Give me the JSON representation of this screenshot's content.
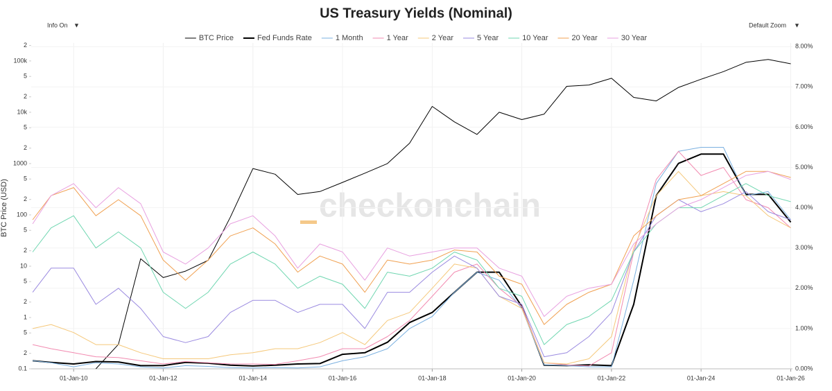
{
  "chart_data": {
    "type": "line",
    "title": "US Treasury Yields (Nominal)",
    "info_toggle": "Info On",
    "zoom_control": "Default Zoom",
    "watermark": "checkonchain",
    "ylabel": "BTC Price (USD)",
    "ylog": true,
    "grid": true,
    "xlim": [
      "2009-01-20",
      "2026-01-15"
    ],
    "xticks": [
      {
        "value": "2010-01-01",
        "label": "01-Jan-10"
      },
      {
        "value": "2012-01-01",
        "label": "01-Jan-12"
      },
      {
        "value": "2014-01-01",
        "label": "01-Jan-14"
      },
      {
        "value": "2016-01-01",
        "label": "01-Jan-16"
      },
      {
        "value": "2018-01-01",
        "label": "01-Jan-18"
      },
      {
        "value": "2020-01-01",
        "label": "01-Jan-20"
      },
      {
        "value": "2022-01-01",
        "label": "01-Jan-22"
      },
      {
        "value": "2024-01-01",
        "label": "01-Jan-24"
      },
      {
        "value": "2026-01-01",
        "label": "01-Jan-26"
      }
    ],
    "ylim": [
      0.1,
      224000
    ],
    "yticks": [
      0.1,
      {
        "value": 0.2,
        "label": "2"
      },
      {
        "value": 0.5,
        "label": "5"
      },
      1,
      2,
      5,
      10,
      {
        "value": 20,
        "label": "2"
      },
      {
        "value": 50,
        "label": "5"
      },
      100,
      {
        "value": 200,
        "label": "2"
      },
      {
        "value": 500,
        "label": "5"
      },
      1000,
      {
        "value": 2000,
        "label": "2"
      },
      {
        "value": 5000,
        "label": "5"
      },
      {
        "value": 10000,
        "label": "10k"
      },
      {
        "value": 20000,
        "label": "2"
      },
      {
        "value": 50000,
        "label": "5"
      },
      {
        "value": 100000,
        "label": "100k"
      },
      {
        "value": 200000,
        "label": "2"
      }
    ],
    "y2lim": [
      0,
      8.09
    ],
    "y2ticks": [
      {
        "value": 0,
        "label": "0.00%"
      },
      {
        "value": 1,
        "label": "1.00%"
      },
      {
        "value": 2,
        "label": "2.00%"
      },
      {
        "value": 3,
        "label": "3.00%"
      },
      {
        "value": 4,
        "label": "4.00%"
      },
      {
        "value": 5,
        "label": "5.00%"
      },
      {
        "value": 6,
        "label": "6.00%"
      },
      {
        "value": 7,
        "label": "7.00%"
      },
      {
        "value": 8,
        "label": "8.00%"
      }
    ],
    "x": [
      "2009-02-01",
      "2009-07-01",
      "2010-01-01",
      "2010-07-01",
      "2011-01-01",
      "2011-07-01",
      "2012-01-01",
      "2012-07-01",
      "2013-01-01",
      "2013-07-01",
      "2014-01-01",
      "2014-07-01",
      "2015-01-01",
      "2015-07-01",
      "2016-01-01",
      "2016-07-01",
      "2017-01-01",
      "2017-07-01",
      "2018-01-01",
      "2018-07-01",
      "2019-01-01",
      "2019-07-01",
      "2020-01-01",
      "2020-07-01",
      "2021-01-01",
      "2021-07-01",
      "2022-01-01",
      "2022-07-01",
      "2023-01-01",
      "2023-07-01",
      "2024-01-01",
      "2024-07-01",
      "2025-01-01",
      "2025-07-01",
      "2026-01-01"
    ],
    "series": [
      {
        "name": "BTC Price",
        "color": "#000000",
        "line_width": 1,
        "axis": "y",
        "values": [
          null,
          null,
          null,
          0.1,
          0.3,
          14,
          6,
          8,
          13,
          90,
          800,
          620,
          250,
          285,
          430,
          650,
          1000,
          2500,
          13000,
          6500,
          3700,
          10000,
          7200,
          9200,
          32000,
          34000,
          46000,
          19500,
          16600,
          30500,
          44000,
          62000,
          94000,
          107000,
          88000
        ]
      },
      {
        "name": "Fed Funds Rate",
        "color": "#000000",
        "line_width": 2,
        "axis": "y2",
        "values": [
          0.2,
          0.16,
          0.12,
          0.18,
          0.17,
          0.08,
          0.08,
          0.16,
          0.14,
          0.09,
          0.07,
          0.09,
          0.12,
          0.13,
          0.36,
          0.4,
          0.66,
          1.15,
          1.4,
          1.9,
          2.4,
          2.4,
          1.55,
          0.09,
          0.08,
          0.1,
          0.08,
          1.6,
          4.3,
          5.1,
          5.33,
          5.33,
          4.33,
          4.33,
          3.64
        ]
      },
      {
        "name": "1 Month",
        "color": "#7ab0e0",
        "line_width": 1,
        "axis": "y2",
        "values": [
          0.2,
          0.15,
          0.05,
          0.15,
          0.12,
          0.05,
          0.02,
          0.08,
          0.06,
          0.03,
          0.02,
          0.03,
          0.02,
          0.05,
          0.2,
          0.3,
          0.5,
          1.0,
          1.3,
          1.9,
          2.4,
          2.2,
          1.5,
          0.1,
          0.08,
          0.05,
          0.05,
          2.2,
          4.6,
          5.4,
          5.5,
          5.5,
          4.3,
          4.4,
          3.7
        ]
      },
      {
        "name": "1 Year",
        "color": "#f28ab0",
        "line_width": 1,
        "axis": "y2",
        "values": [
          0.6,
          0.5,
          0.4,
          0.3,
          0.28,
          0.2,
          0.12,
          0.18,
          0.15,
          0.12,
          0.12,
          0.11,
          0.2,
          0.3,
          0.5,
          0.5,
          0.8,
          1.2,
          1.8,
          2.4,
          2.6,
          2.0,
          1.55,
          0.15,
          0.1,
          0.07,
          0.4,
          2.9,
          4.7,
          5.4,
          4.8,
          5.0,
          4.2,
          4.0,
          3.5
        ]
      },
      {
        "name": "2 Year",
        "color": "#f5c87a",
        "line_width": 1,
        "axis": "y2",
        "values": [
          1.0,
          1.1,
          0.9,
          0.6,
          0.6,
          0.4,
          0.25,
          0.25,
          0.25,
          0.35,
          0.4,
          0.5,
          0.5,
          0.65,
          0.9,
          0.6,
          1.2,
          1.4,
          2.0,
          2.6,
          2.5,
          1.8,
          1.5,
          0.15,
          0.12,
          0.25,
          0.8,
          3.0,
          4.3,
          4.9,
          4.3,
          4.4,
          4.3,
          3.8,
          3.5
        ]
      },
      {
        "name": "5 Year",
        "color": "#9a8ae0",
        "line_width": 1,
        "axis": "y2",
        "values": [
          1.9,
          2.5,
          2.5,
          1.6,
          2.0,
          1.5,
          0.8,
          0.65,
          0.8,
          1.4,
          1.7,
          1.7,
          1.4,
          1.6,
          1.6,
          1.0,
          1.9,
          1.9,
          2.4,
          2.8,
          2.5,
          1.8,
          1.6,
          0.3,
          0.4,
          0.8,
          1.4,
          2.9,
          3.8,
          4.2,
          3.9,
          4.1,
          4.4,
          3.9,
          3.7
        ]
      },
      {
        "name": "10 Year",
        "color": "#6fd6b0",
        "line_width": 1,
        "axis": "y2",
        "values": [
          2.9,
          3.5,
          3.8,
          3.0,
          3.4,
          3.0,
          1.9,
          1.5,
          1.9,
          2.6,
          2.9,
          2.6,
          2.0,
          2.3,
          2.1,
          1.5,
          2.4,
          2.3,
          2.5,
          2.9,
          2.7,
          2.0,
          1.8,
          0.6,
          1.1,
          1.3,
          1.7,
          2.9,
          3.6,
          4.0,
          4.0,
          4.3,
          4.6,
          4.3,
          4.15
        ]
      },
      {
        "name": "20 Year",
        "color": "#f0a050",
        "line_width": 1,
        "axis": "y2",
        "values": [
          3.7,
          4.3,
          4.5,
          3.8,
          4.2,
          3.8,
          2.7,
          2.2,
          2.7,
          3.3,
          3.5,
          3.1,
          2.4,
          2.8,
          2.6,
          1.9,
          2.7,
          2.6,
          2.7,
          2.95,
          2.9,
          2.3,
          2.1,
          1.1,
          1.6,
          1.9,
          2.1,
          3.3,
          3.8,
          4.2,
          4.3,
          4.6,
          4.9,
          4.9,
          4.75
        ]
      },
      {
        "name": "30 Year",
        "color": "#e8a0e0",
        "line_width": 1,
        "axis": "y2",
        "values": [
          3.6,
          4.3,
          4.6,
          4.0,
          4.5,
          4.1,
          2.9,
          2.6,
          3.0,
          3.6,
          3.8,
          3.3,
          2.5,
          3.1,
          2.9,
          2.2,
          3.0,
          2.8,
          2.9,
          3.0,
          3.0,
          2.5,
          2.3,
          1.3,
          1.8,
          2.0,
          2.1,
          3.1,
          3.6,
          4.0,
          4.2,
          4.5,
          4.8,
          4.9,
          4.7
        ]
      }
    ]
  }
}
